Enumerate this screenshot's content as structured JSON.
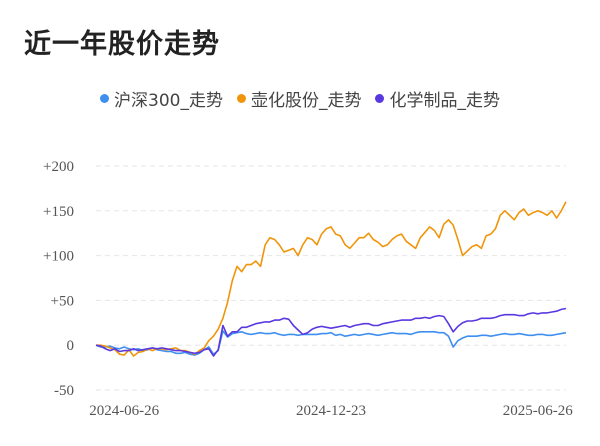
{
  "title": "近一年股价走势",
  "chart_data": {
    "type": "line",
    "title": "近一年股价走势",
    "xlabel": "",
    "ylabel": "",
    "ylim": [
      -50,
      200
    ],
    "yticks": [
      -50,
      0,
      50,
      100,
      150,
      200
    ],
    "ytick_labels": [
      "-50",
      "0",
      "+50",
      "+100",
      "+150",
      "+200"
    ],
    "xticks": [
      "2024-06-26",
      "2024-12-23",
      "2025-06-26"
    ],
    "x_index_range": [
      0,
      100
    ],
    "xtick_index": [
      6,
      50,
      94
    ],
    "grid": "horizontal dashed",
    "legend": "top-center",
    "series": [
      {
        "name": "沪深300_走势",
        "color": "#3f8ff0",
        "values": [
          0,
          -2,
          -2,
          -1,
          -3,
          -4,
          -2,
          -4,
          -5,
          -4,
          -6,
          -5,
          -3,
          -5,
          -6,
          -7,
          -7,
          -9,
          -9,
          -8,
          -10,
          -11,
          -9,
          -5,
          -2,
          -10,
          -6,
          16,
          9,
          13,
          14,
          15,
          13,
          12,
          13,
          14,
          13,
          13,
          14,
          12,
          11,
          12,
          12,
          11,
          12,
          12,
          12,
          12,
          13,
          13,
          14,
          11,
          12,
          10,
          11,
          12,
          11,
          12,
          13,
          12,
          11,
          12,
          13,
          14,
          13,
          13,
          13,
          12,
          14,
          15,
          15,
          15,
          15,
          14,
          14,
          10,
          -2,
          5,
          8,
          10,
          10,
          10,
          11,
          11,
          10,
          11,
          12,
          13,
          12,
          12,
          13,
          12,
          11,
          11,
          12,
          12,
          11,
          11,
          12,
          13,
          14
        ]
      },
      {
        "name": "壶化股份_走势",
        "color": "#f0950a",
        "values": [
          0,
          0,
          -1,
          -3,
          -5,
          -10,
          -11,
          -5,
          -12,
          -8,
          -7,
          -4,
          -6,
          -4,
          -4,
          -5,
          -4,
          -3,
          -6,
          -6,
          -8,
          -10,
          -6,
          -3,
          5,
          10,
          18,
          30,
          48,
          72,
          88,
          82,
          90,
          90,
          94,
          88,
          112,
          120,
          118,
          112,
          104,
          106,
          108,
          100,
          112,
          120,
          118,
          112,
          124,
          130,
          132,
          124,
          122,
          112,
          108,
          114,
          120,
          120,
          125,
          118,
          115,
          110,
          112,
          118,
          122,
          124,
          116,
          112,
          108,
          120,
          126,
          132,
          128,
          120,
          135,
          140,
          134,
          118,
          100,
          105,
          110,
          112,
          108,
          122,
          124,
          130,
          145,
          150,
          145,
          140,
          148,
          152,
          145,
          148,
          150,
          148,
          145,
          150,
          142,
          150,
          160
        ]
      },
      {
        "name": "化学制品_走势",
        "color": "#5a38e0",
        "values": [
          0,
          -1,
          -4,
          -6,
          -4,
          -7,
          -6,
          -6,
          -4,
          -6,
          -5,
          -4,
          -3,
          -4,
          -3,
          -4,
          -5,
          -6,
          -6,
          -7,
          -8,
          -9,
          -8,
          -5,
          -4,
          -12,
          -5,
          22,
          10,
          15,
          15,
          20,
          20,
          22,
          24,
          25,
          26,
          26,
          28,
          28,
          30,
          29,
          22,
          17,
          12,
          14,
          18,
          20,
          21,
          20,
          19,
          20,
          21,
          22,
          20,
          22,
          23,
          24,
          24,
          22,
          22,
          24,
          25,
          26,
          27,
          28,
          28,
          28,
          30,
          30,
          31,
          30,
          32,
          33,
          32,
          24,
          15,
          21,
          25,
          27,
          27,
          28,
          30,
          30,
          30,
          31,
          33,
          34,
          34,
          34,
          33,
          33,
          35,
          36,
          35,
          36,
          36,
          37,
          38,
          40,
          41
        ]
      }
    ]
  }
}
